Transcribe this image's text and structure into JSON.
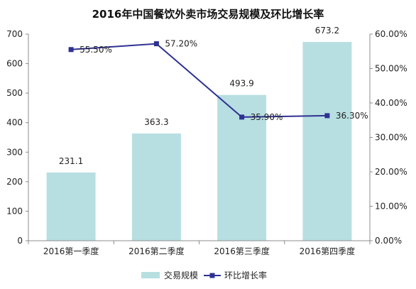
{
  "chart_data": {
    "type": "bar",
    "title": "2016年中国餐饮外卖市场交易规模及环比增长率",
    "categories": [
      "2016第一季度",
      "2016第二季度",
      "2016第三季度",
      "2016第四季度"
    ],
    "series": [
      {
        "name": "交易规模",
        "type": "bar",
        "axis": "left",
        "values": [
          231.1,
          363.3,
          493.9,
          673.2
        ],
        "labels": [
          "231.1",
          "363.3",
          "493.9",
          "673.2"
        ],
        "color": "#b7dfe1"
      },
      {
        "name": "环比增长率",
        "type": "line",
        "axis": "right",
        "values": [
          55.5,
          57.2,
          35.9,
          36.3
        ],
        "labels": [
          "55.50%",
          "57.20%",
          "35.90%",
          "36.30%"
        ],
        "color": "#2e3192"
      }
    ],
    "left_axis": {
      "ylim": [
        0,
        700
      ],
      "ticks": [
        "0",
        "100",
        "200",
        "300",
        "400",
        "500",
        "600",
        "700"
      ]
    },
    "right_axis": {
      "ylim": [
        0,
        60
      ],
      "ticks": [
        "0.00%",
        "10.00%",
        "20.00%",
        "30.00%",
        "40.00%",
        "50.00%",
        "60.00%"
      ]
    },
    "grid": false,
    "legend": "bottom"
  }
}
